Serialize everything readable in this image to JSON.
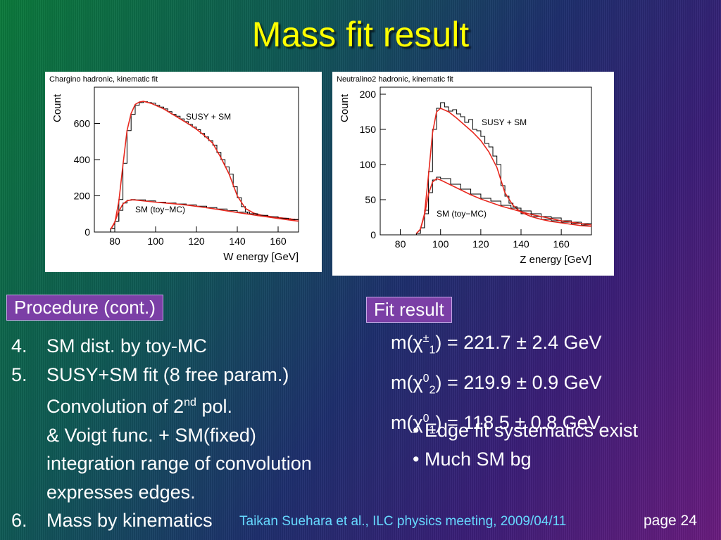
{
  "title": "Mass fit result",
  "chart_data": [
    {
      "type": "line",
      "title": "Chargino hadronic, kinematic fit",
      "xlabel": "W energy [GeV]",
      "ylabel": "Count",
      "xlim": [
        70,
        170
      ],
      "ylim": [
        0,
        800
      ],
      "xticks": [
        "80",
        "100",
        "120",
        "140",
        "160"
      ],
      "yticks": [
        "0",
        "200",
        "400",
        "600"
      ],
      "annotations": [
        "SUSY + SM",
        "SM (toy−MC)"
      ],
      "series": [
        {
          "name": "SUSY + SM",
          "color": "#000000",
          "x": [
            70,
            75,
            78,
            80,
            82,
            84,
            86,
            88,
            90,
            92,
            94,
            96,
            98,
            100,
            102,
            104,
            106,
            108,
            110,
            112,
            114,
            116,
            118,
            120,
            122,
            124,
            126,
            128,
            130,
            132,
            134,
            136,
            138,
            140,
            142,
            144,
            146,
            148,
            150,
            152,
            154,
            156,
            158,
            160,
            162,
            164,
            166,
            168,
            170
          ],
          "y": [
            0,
            0,
            20,
            60,
            180,
            380,
            560,
            650,
            700,
            715,
            720,
            715,
            712,
            700,
            690,
            680,
            665,
            650,
            640,
            625,
            610,
            595,
            580,
            565,
            545,
            525,
            505,
            480,
            440,
            400,
            360,
            320,
            250,
            190,
            140,
            110,
            100,
            95,
            90,
            88,
            85,
            82,
            80,
            78,
            76,
            74,
            72,
            70,
            68
          ]
        },
        {
          "name": "SUSY + SM fit",
          "color": "#e8281e",
          "x": [
            78,
            80,
            82,
            84,
            86,
            88,
            90,
            92,
            94,
            96,
            98,
            100,
            104,
            108,
            112,
            116,
            120,
            124,
            128,
            132,
            136,
            140,
            144,
            148,
            152,
            156,
            160,
            164,
            168,
            170
          ],
          "y": [
            15,
            50,
            170,
            370,
            560,
            655,
            705,
            718,
            722,
            716,
            710,
            700,
            680,
            652,
            625,
            598,
            568,
            532,
            490,
            410,
            320,
            200,
            130,
            105,
            93,
            86,
            80,
            75,
            70,
            68
          ]
        },
        {
          "name": "SM (toy−MC)",
          "color": "#000000",
          "x": [
            70,
            75,
            78,
            80,
            82,
            84,
            86,
            88,
            90,
            95,
            100,
            105,
            110,
            115,
            120,
            125,
            130,
            135,
            140,
            145,
            150,
            155,
            160,
            165,
            170
          ],
          "y": [
            0,
            0,
            20,
            60,
            120,
            160,
            175,
            180,
            178,
            172,
            165,
            160,
            155,
            150,
            143,
            135,
            127,
            118,
            110,
            101,
            92,
            84,
            76,
            68,
            60
          ]
        },
        {
          "name": "SM fit",
          "color": "#e8281e",
          "x": [
            78,
            80,
            82,
            84,
            86,
            88,
            90,
            95,
            100,
            105,
            110,
            115,
            120,
            125,
            130,
            135,
            140,
            145,
            150,
            155,
            160,
            165,
            170
          ],
          "y": [
            15,
            55,
            115,
            155,
            172,
            178,
            177,
            171,
            165,
            160,
            155,
            149,
            142,
            134,
            126,
            117,
            108,
            100,
            91,
            83,
            75,
            67,
            60
          ]
        }
      ]
    },
    {
      "type": "line",
      "title": "Neutralino2 hadronic, kinematic fit",
      "xlabel": "Z energy [GeV]",
      "ylabel": "Count",
      "xlim": [
        70,
        175
      ],
      "ylim": [
        0,
        210
      ],
      "xticks": [
        "80",
        "100",
        "120",
        "140",
        "160"
      ],
      "yticks": [
        "0",
        "50",
        "100",
        "150",
        "200"
      ],
      "annotations": [
        "SUSY + SM",
        "SM (toy−MC)"
      ],
      "series": [
        {
          "name": "SUSY + SM",
          "color": "#000000",
          "x": [
            70,
            80,
            88,
            90,
            92,
            94,
            96,
            98,
            100,
            102,
            104,
            106,
            108,
            110,
            112,
            114,
            116,
            118,
            120,
            122,
            124,
            126,
            128,
            130,
            132,
            134,
            136,
            138,
            140,
            145,
            150,
            155,
            160,
            165,
            170,
            175
          ],
          "y": [
            0,
            0,
            2,
            10,
            35,
            90,
            150,
            180,
            188,
            182,
            176,
            178,
            172,
            168,
            160,
            164,
            150,
            148,
            140,
            130,
            125,
            112,
            100,
            70,
            55,
            45,
            40,
            35,
            30,
            26,
            22,
            20,
            18,
            16,
            14,
            12
          ]
        },
        {
          "name": "SUSY + SM fit",
          "color": "#e8281e",
          "x": [
            88,
            90,
            92,
            94,
            96,
            98,
            100,
            104,
            108,
            112,
            116,
            120,
            124,
            128,
            130,
            132,
            136,
            140,
            145,
            150,
            155,
            160,
            165,
            170,
            175
          ],
          "y": [
            2,
            8,
            30,
            85,
            145,
            175,
            180,
            175,
            166,
            156,
            146,
            134,
            118,
            96,
            78,
            60,
            42,
            32,
            26,
            22,
            19,
            17,
            15,
            13,
            12
          ]
        },
        {
          "name": "SM (toy−MC)",
          "color": "#000000",
          "x": [
            70,
            80,
            88,
            90,
            92,
            94,
            96,
            98,
            100,
            105,
            110,
            115,
            120,
            125,
            130,
            135,
            140,
            145,
            150,
            155,
            160,
            165,
            170,
            175
          ],
          "y": [
            0,
            0,
            2,
            10,
            30,
            60,
            78,
            82,
            80,
            72,
            65,
            58,
            52,
            48,
            42,
            38,
            34,
            30,
            26,
            24,
            20,
            18,
            16,
            14
          ]
        },
        {
          "name": "SM fit",
          "color": "#e8281e",
          "x": [
            88,
            90,
            92,
            94,
            96,
            98,
            100,
            105,
            110,
            115,
            120,
            125,
            130,
            135,
            140,
            145,
            150,
            155,
            160,
            165,
            170,
            175
          ],
          "y": [
            2,
            8,
            28,
            58,
            75,
            80,
            78,
            71,
            64,
            57,
            51,
            46,
            41,
            37,
            33,
            29,
            26,
            23,
            20,
            18,
            16,
            14
          ]
        }
      ]
    }
  ],
  "procedure": {
    "label": "Procedure (cont.)",
    "items": [
      {
        "num": "4.",
        "text": "SM dist. by toy-MC"
      },
      {
        "num": "5.",
        "text": "SUSY+SM fit (8 free param.)"
      },
      {
        "num": "",
        "text_pre": "Convolution of 2",
        "sup": "nd",
        "text_post": " pol."
      },
      {
        "num": "",
        "text": "& Voigt func. + SM(fixed)"
      },
      {
        "num": "",
        "text": "integration range of convolution"
      },
      {
        "num": "",
        "text": "expresses edges."
      },
      {
        "num": "6.",
        "text": "Mass by kinematics"
      }
    ]
  },
  "fit": {
    "label": "Fit result",
    "results": [
      {
        "pre": "m(χ",
        "sup": "±",
        "sub": "1",
        "post": ") = 221.7 ± 2.4 GeV"
      },
      {
        "pre": "m(χ",
        "sup": "0",
        "sub": "2",
        "post": ") = 219.9 ± 0.9 GeV"
      },
      {
        "pre": "m(χ",
        "sup": "0",
        "sub": "1",
        "post": ") = 118.5 ± 0.8 GeV"
      }
    ],
    "bullets": [
      "•  Edge fit systematics exist",
      "• Much SM bg"
    ]
  },
  "footer": {
    "citation": "Taikan Suehara et al., ILC physics meeting, 2009/04/11",
    "page": "page 24"
  }
}
